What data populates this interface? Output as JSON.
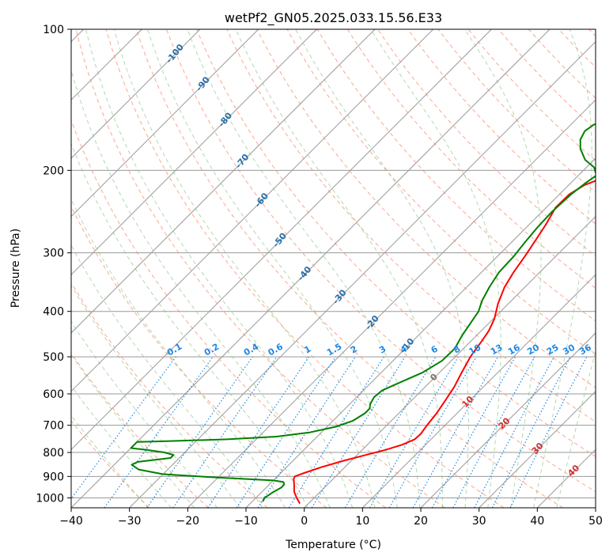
{
  "chart_data": {
    "type": "line",
    "title": "wetPf2_GN05.2025.033.15.56.E33",
    "xlabel": "Temperature (°C)",
    "ylabel": "Pressure (hPa)",
    "xlim": [
      -40,
      50
    ],
    "ylim": [
      1050,
      100
    ],
    "y_scale": "log",
    "grid": true,
    "x_ticks": [
      -40,
      -30,
      -20,
      -10,
      0,
      10,
      20,
      30,
      40,
      50
    ],
    "y_ticks": [
      100,
      200,
      300,
      400,
      500,
      600,
      700,
      800,
      900,
      1000
    ],
    "series": [
      {
        "color": "#ff0000",
        "points": [
          [
            -1.5,
            1028
          ],
          [
            -3.0,
            1000
          ],
          [
            -4.5,
            970
          ],
          [
            -5.6,
            940
          ],
          [
            -6.8,
            910
          ],
          [
            -7.0,
            900
          ],
          [
            -6.0,
            885
          ],
          [
            -4.0,
            860
          ],
          [
            -1.5,
            835
          ],
          [
            1.5,
            810
          ],
          [
            4.0,
            790
          ],
          [
            6.0,
            770
          ],
          [
            7.2,
            750
          ],
          [
            7.3,
            730
          ],
          [
            6.9,
            700
          ],
          [
            6.5,
            660
          ],
          [
            5.8,
            620
          ],
          [
            5.0,
            580
          ],
          [
            3.8,
            540
          ],
          [
            2.6,
            500
          ],
          [
            1.8,
            460
          ],
          [
            1.3,
            440
          ],
          [
            0.2,
            415
          ],
          [
            -1.8,
            385
          ],
          [
            -3.5,
            355
          ],
          [
            -4.5,
            330
          ],
          [
            -5.3,
            305
          ],
          [
            -6.3,
            280
          ],
          [
            -7.2,
            260
          ],
          [
            -8.4,
            240
          ],
          [
            -8.3,
            225
          ],
          [
            -7.3,
            215
          ],
          [
            -5.2,
            207
          ],
          [
            -1.7,
            200
          ],
          [
            0.9,
            195
          ],
          [
            3.5,
            187
          ],
          [
            7.2,
            173
          ],
          [
            9.8,
            160
          ],
          [
            11.6,
            145
          ],
          [
            12.5,
            130
          ],
          [
            13.2,
            120
          ],
          [
            14.4,
            112
          ],
          [
            16.6,
            105
          ],
          [
            18.0,
            100
          ]
        ]
      },
      {
        "color": "#008000",
        "points": [
          [
            -8.2,
            1018
          ],
          [
            -8.5,
            1000
          ],
          [
            -8.1,
            975
          ],
          [
            -7.4,
            950
          ],
          [
            -7.5,
            935
          ],
          [
            -8.0,
            925
          ],
          [
            -10.0,
            918
          ],
          [
            -20.0,
            905
          ],
          [
            -30.0,
            890
          ],
          [
            -35.0,
            870
          ],
          [
            -37.0,
            850
          ],
          [
            -36.5,
            838
          ],
          [
            -34.0,
            830
          ],
          [
            -31.5,
            822
          ],
          [
            -31.5,
            810
          ],
          [
            -33.5,
            800
          ],
          [
            -37.0,
            790
          ],
          [
            -40.0,
            783
          ],
          [
            -40.0,
            760
          ],
          [
            -35.0,
            757
          ],
          [
            -25.0,
            750
          ],
          [
            -17.0,
            740
          ],
          [
            -12.0,
            725
          ],
          [
            -8.5,
            705
          ],
          [
            -6.6,
            685
          ],
          [
            -5.8,
            660
          ],
          [
            -5.8,
            645
          ],
          [
            -6.5,
            630
          ],
          [
            -7.0,
            610
          ],
          [
            -6.8,
            590
          ],
          [
            -5.3,
            570
          ],
          [
            -2.9,
            540
          ],
          [
            -1.6,
            510
          ],
          [
            -1.5,
            480
          ],
          [
            -2.5,
            450
          ],
          [
            -3.0,
            430
          ],
          [
            -3.8,
            400
          ],
          [
            -5.0,
            380
          ],
          [
            -6.1,
            355
          ],
          [
            -7.0,
            330
          ],
          [
            -7.2,
            305
          ],
          [
            -7.7,
            285
          ],
          [
            -8.1,
            265
          ],
          [
            -8.3,
            245
          ],
          [
            -8.0,
            225
          ],
          [
            -7.4,
            212
          ],
          [
            -6.9,
            205
          ],
          [
            -8.7,
            197
          ],
          [
            -11.5,
            190
          ],
          [
            -14.2,
            180
          ],
          [
            -15.8,
            172
          ],
          [
            -16.5,
            165
          ],
          [
            -16.1,
            160
          ],
          [
            -14.2,
            155
          ],
          [
            -12.3,
            145
          ],
          [
            -10.2,
            135
          ],
          [
            -8.3,
            125
          ],
          [
            -6.0,
            117
          ],
          [
            -3.9,
            110
          ],
          [
            -2.0,
            103
          ],
          [
            -1.0,
            100
          ]
        ]
      }
    ],
    "mixing_ratio_labels": [
      "0.1",
      "0.2",
      "0.4",
      "0.6",
      "1",
      "1.5",
      "2",
      "3",
      "4",
      "6",
      "8",
      "10",
      "13",
      "16",
      "20",
      "25",
      "30",
      "36"
    ],
    "mixing_ratio_values": [
      0.1,
      0.2,
      0.4,
      0.6,
      1,
      1.5,
      2,
      3,
      4,
      6,
      8,
      10,
      13,
      16,
      20,
      25,
      30,
      36
    ],
    "dry_adiabat_labels": [
      "-100",
      "-90",
      "-80",
      "-70",
      "-60",
      "-50",
      "-40",
      "-30",
      "-20",
      "-10"
    ],
    "moist_adiabat_labels": [
      "0",
      "10",
      "20",
      "30",
      "40"
    ],
    "colors": {
      "temperature": "#ff0000",
      "dewpoint": "#008000",
      "dry_adiabat": "#fa8a6a",
      "moist_adiabat": "#7cbf7c",
      "mixing_ratio": "#1e88e5",
      "isotherm": "#999999"
    }
  }
}
